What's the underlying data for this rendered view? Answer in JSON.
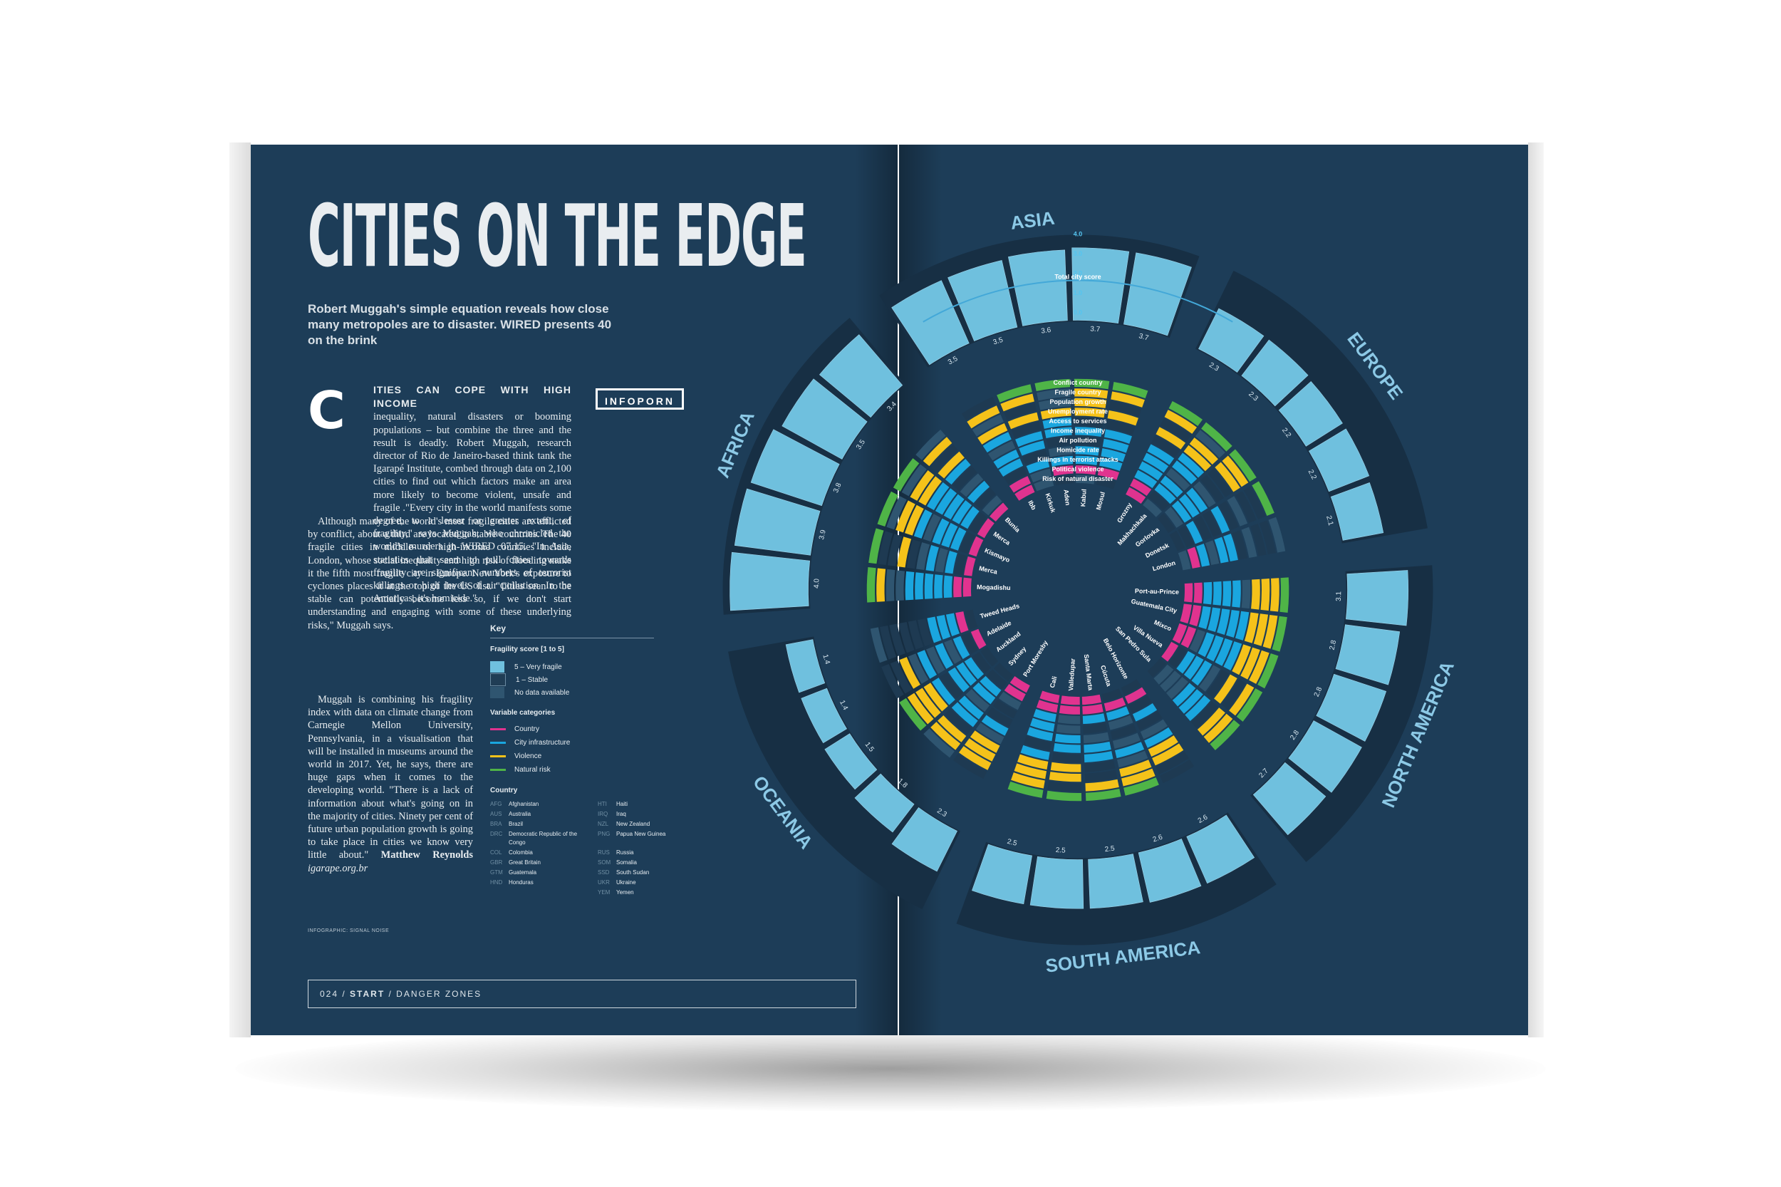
{
  "article": {
    "title": "CITIES ON THE EDGE",
    "subtitle": "Robert Muggah's simple equation reveals how close many metropoles are to disaster. WIRED presents 40 on the brink",
    "tag": "INFOPORN",
    "dropcap": "C",
    "lead": "ITIES CAN COPE WITH HIGH INCOME",
    "body1": "inequality, natural disasters or booming populations – but combine the three and the result is deadly. Robert Muggah, research director of Rio de Janeiro-based think tank the Igarapé Institute, combed through data on 2,100 cities to find out which factors make an area more likely to become violent, unsafe and fragile .\"Every city in the world manifests some degree, to a lesser or greater extent, of fragility,\" says Muggah, who chronicled the world's murders in WIRED 07.15. \"In Asia, statistics that seem to pull cities towards fragility are significant numbers of terrorist killings or high levels of air pollution. In the Americas, it's homicide.\"",
    "body2": "Although many of the world's most fragile cities are afflicted by conflict, about a third are located in stable countries. The 40 fragile cities in middle- or high-income countries include London, whose social inequality and high risk of flooding make it the fifth most fragile city in Europe. New York's exposure to cyclones places it at the top of the US list. \"Cities seen to be stable can potentially become less so, if we don't start understanding and engaging with some of these underlying risks,\" Muggah says.",
    "body3": "Muggah is combining his fragility index with data on climate change from Carnegie Mellon University, Pennsylvania, in a visualisation that will be installed in museums around the world in 2017. Yet, he says, there are huge gaps when it comes to the developing world. \"There is a lack of information about what's going on in the majority of cities. Ninety per cent of future urban population growth is going to take place in cities we know very little about.\"",
    "byline": "Matthew Reynolds",
    "link": "igarape.org.br",
    "credit": "INFOGRAPHIC: SIGNAL NOISE",
    "footer_page": "024",
    "footer_section": "START",
    "footer_topic": "DANGER ZONES"
  },
  "key": {
    "heading": "Key",
    "fragility_heading": "Fragility score [1 to 5]",
    "fragility_items": [
      {
        "label": "5 – Very fragile",
        "color": "#6fc0de"
      },
      {
        "label": "1 – Stable",
        "color": "#203d55"
      },
      {
        "label": "No data available",
        "color": "#2f5570"
      }
    ],
    "categories_heading": "Variable categories",
    "categories": [
      {
        "label": "Country",
        "color": "#e0338f"
      },
      {
        "label": "City infrastructure",
        "color": "#1aa6df"
      },
      {
        "label": "Violence",
        "color": "#f5c21a"
      },
      {
        "label": "Natural risk",
        "color": "#4fb447"
      }
    ],
    "country_heading": "Country",
    "countries": [
      [
        "AFG",
        "Afghanistan"
      ],
      [
        "AUS",
        "Australia"
      ],
      [
        "BRA",
        "Brazil"
      ],
      [
        "DRC",
        "Democratic Republic of the Congo"
      ],
      [
        "COL",
        "Colombia"
      ],
      [
        "GBR",
        "Great Britain"
      ],
      [
        "GTM",
        "Guatemala"
      ],
      [
        "HND",
        "Honduras"
      ],
      [
        "HTI",
        "Haiti"
      ],
      [
        "IRQ",
        "Iraq"
      ],
      [
        "NZL",
        "New Zealand"
      ],
      [
        "PNG",
        "Papua New Guinea"
      ],
      [
        "RUS",
        "Russia"
      ],
      [
        "SOM",
        "Somalia"
      ],
      [
        "SSD",
        "South Sudan"
      ],
      [
        "UKR",
        "Ukraine"
      ],
      [
        "YEM",
        "Yemen"
      ]
    ]
  },
  "chart_data": {
    "type": "radial",
    "scale_ticks": [
      "4.0",
      "3.0",
      "2.0",
      "1.0",
      "0.0"
    ],
    "variables": [
      "Total city score",
      "Conflict country",
      "Fragile country",
      "Population growth",
      "Unemployment rate",
      "Access to services",
      "Income inequality",
      "Air pollution",
      "Homicide rate",
      "Killings in terrorist attacks",
      "Political violence",
      "Risk of natural disaster"
    ],
    "regions": [
      {
        "name": "ASIA",
        "cities": [
          {
            "city": "Ibb",
            "code": "YEM",
            "score": 3.5
          },
          {
            "city": "Kirkuk",
            "code": "IRQ",
            "score": 3.5
          },
          {
            "city": "Aden",
            "code": "YEM",
            "score": 3.6
          },
          {
            "city": "Kabul",
            "code": "AFG",
            "score": 3.7
          },
          {
            "city": "Mosul",
            "code": "IRQ",
            "score": 3.7
          }
        ]
      },
      {
        "name": "EUROPE",
        "cities": [
          {
            "city": "Grozny",
            "code": "RUS",
            "score": 2.3
          },
          {
            "city": "Makhachkala",
            "code": "RUS",
            "score": 2.3
          },
          {
            "city": "Gorlovka",
            "code": "UKR",
            "score": 2.2
          },
          {
            "city": "Donetsk",
            "code": "UKR",
            "score": 2.2
          },
          {
            "city": "London",
            "code": "GBR",
            "score": 2.1
          }
        ]
      },
      {
        "name": "NORTH AMERICA",
        "cities": [
          {
            "city": "Port-au-Prince",
            "code": "HTI",
            "score": 3.1
          },
          {
            "city": "Guatemala City",
            "code": "GTM",
            "score": 2.8
          },
          {
            "city": "Mixco",
            "code": "GTM",
            "score": 2.8
          },
          {
            "city": "Villa Nueva",
            "code": "GTM",
            "score": 2.8
          },
          {
            "city": "San Pedro Sula",
            "code": "HND",
            "score": 2.7
          }
        ]
      },
      {
        "name": "SOUTH AMERICA",
        "cities": [
          {
            "city": "Belo Horizonte",
            "code": "BRA",
            "score": 2.6
          },
          {
            "city": "Cúcuta",
            "code": "COL",
            "score": 2.6
          },
          {
            "city": "Santa Marta",
            "code": "COL",
            "score": 2.5
          },
          {
            "city": "Valledupar",
            "code": "COL",
            "score": 2.5
          },
          {
            "city": "Cali",
            "code": "COL",
            "score": 2.5
          }
        ]
      },
      {
        "name": "OCEANIA",
        "cities": [
          {
            "city": "Port Moresby",
            "code": "PNG",
            "score": 2.3
          },
          {
            "city": "Sydney",
            "code": "AUS",
            "score": 1.8
          },
          {
            "city": "Auckland",
            "code": "NZL",
            "score": 1.5
          },
          {
            "city": "Adelaide",
            "code": "AUS",
            "score": 1.4
          },
          {
            "city": "Tweed Heads",
            "code": "AUS",
            "score": 1.4
          }
        ]
      },
      {
        "name": "AFRICA",
        "cities": [
          {
            "city": "Mogadishu",
            "code": "SOM",
            "score": 4.0
          },
          {
            "city": "Merca",
            "code": "SOM",
            "score": 3.9
          },
          {
            "city": "Kismayo",
            "code": "SOM",
            "score": 3.8
          },
          {
            "city": "Merca",
            "code": "SSD",
            "score": 3.5
          },
          {
            "city": "Bunia",
            "code": "DRC",
            "score": 3.4
          }
        ]
      }
    ]
  }
}
